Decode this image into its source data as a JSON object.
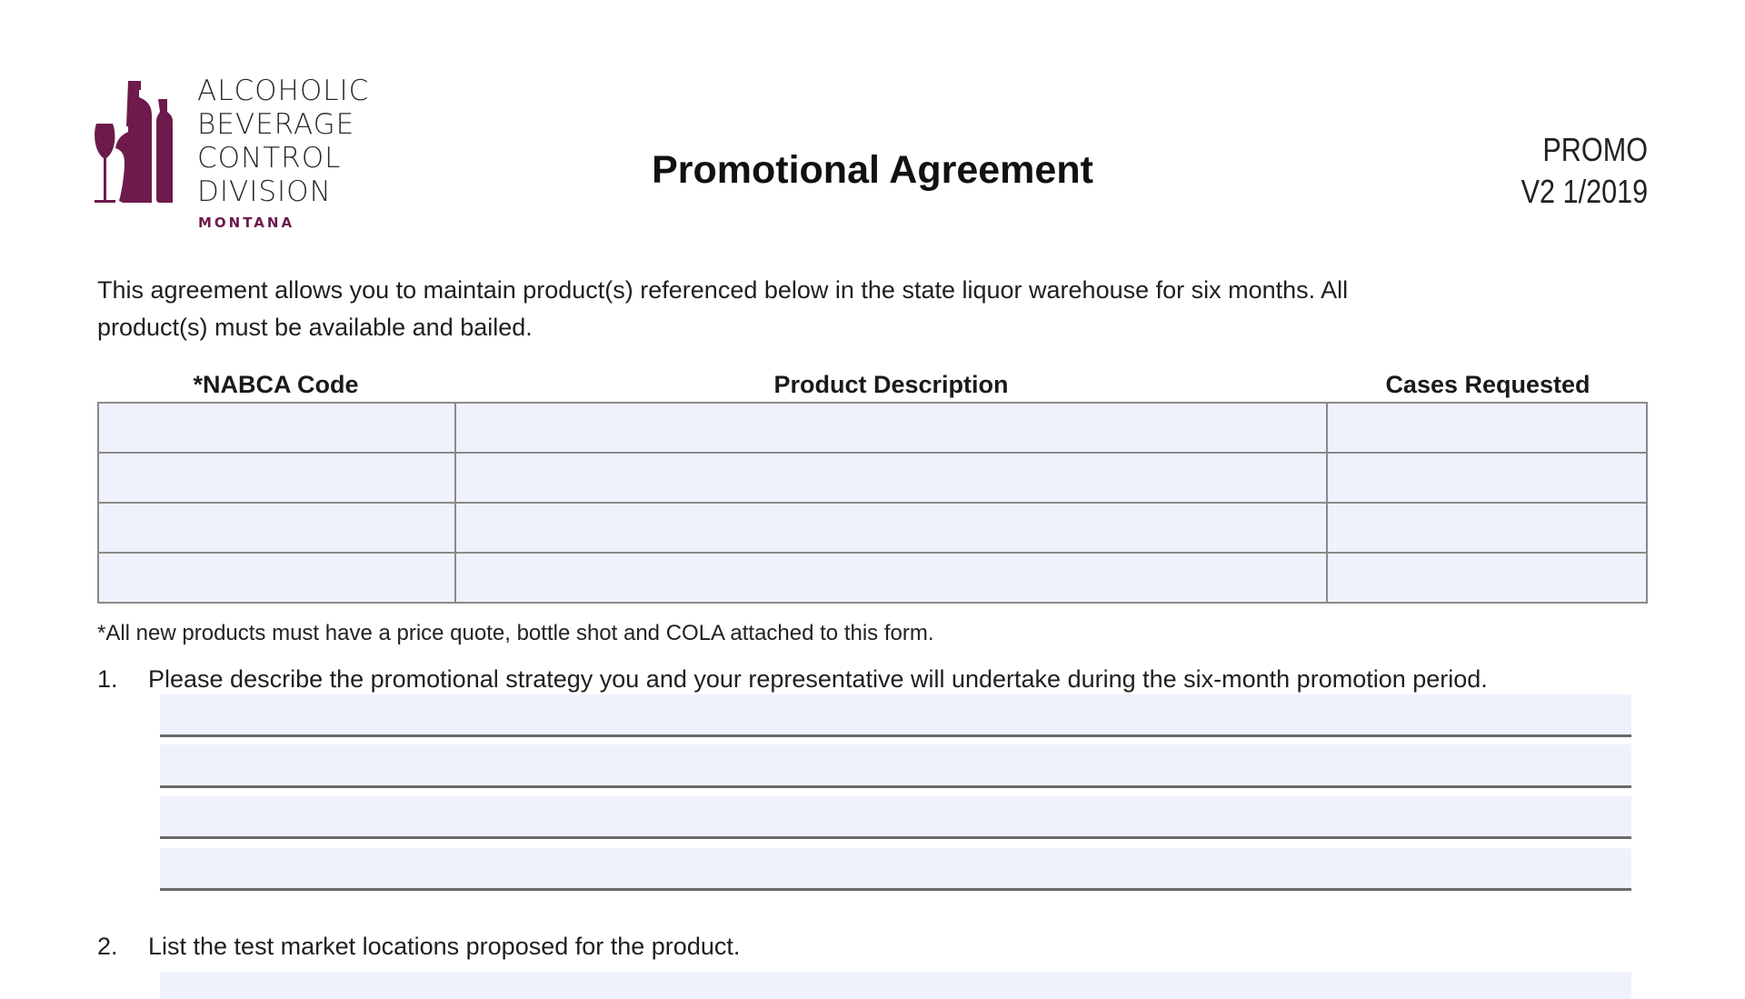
{
  "logo": {
    "lines": [
      "ALCOHOLIC",
      "BEVERAGE",
      "CONTROL",
      "DIVISION"
    ],
    "state": "MONTANA",
    "brand_color": "#6e1a4c"
  },
  "header": {
    "title": "Promotional Agreement",
    "form_code": "PROMO",
    "form_version": "V2 1/2019"
  },
  "intro": {
    "line1": "This agreement allows you to maintain product(s) referenced below in the state liquor warehouse for six months. All",
    "line2": "product(s) must be available and bailed."
  },
  "product_table": {
    "headers": [
      "*NABCA Code",
      "Product Description",
      "Cases Requested"
    ],
    "rows": [
      [
        "",
        "",
        ""
      ],
      [
        "",
        "",
        ""
      ],
      [
        "",
        "",
        ""
      ],
      [
        "",
        "",
        ""
      ]
    ],
    "fill_color": "#eff1fd"
  },
  "footnote": "*All new products must have a price quote, bottle shot and COLA attached to this form.",
  "questions": [
    {
      "number": "1.",
      "text": "Please describe the promotional strategy you and your representative will undertake during the six-month promotion period.",
      "answer_lines": [
        "",
        "",
        "",
        ""
      ]
    },
    {
      "number": "2.",
      "text": "List the test market locations proposed for the product.",
      "answer_lines": [
        ""
      ]
    }
  ]
}
